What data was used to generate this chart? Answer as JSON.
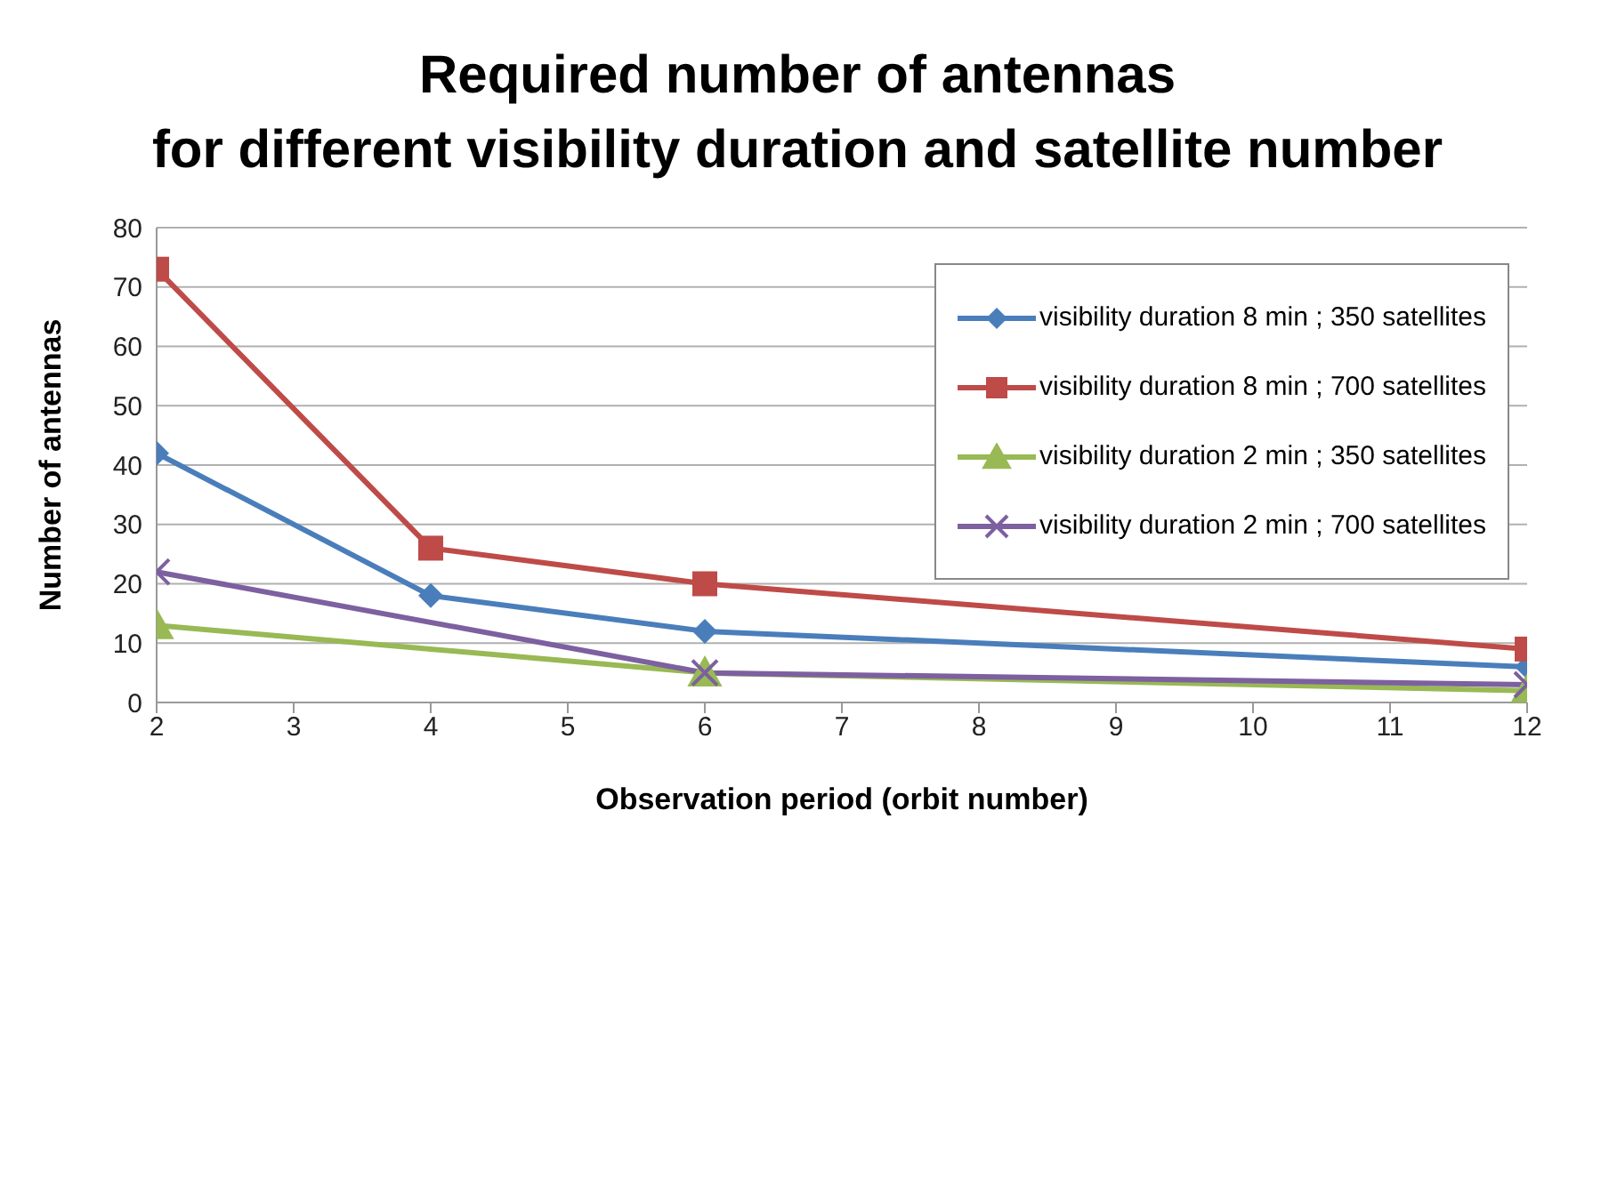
{
  "chart_data": {
    "type": "line",
    "title": "Required number of antennas\nfor different visibility duration and satellite number",
    "xlabel": "Observation period (orbit number)",
    "ylabel": "Number of antennas",
    "xlim": [
      2,
      12
    ],
    "xticks": [
      2,
      3,
      4,
      5,
      6,
      7,
      8,
      9,
      10,
      11,
      12
    ],
    "ylim": [
      0,
      80
    ],
    "yticks": [
      0,
      10,
      20,
      30,
      40,
      50,
      60,
      70,
      80
    ],
    "grid": "y",
    "legend": "top right",
    "line_style": "solid",
    "series": [
      {
        "name": "visibility duration 8 min ; 350 satellites",
        "color": "#4a7ebb",
        "marker": "diamond",
        "x": [
          2,
          4,
          6,
          12
        ],
        "values": [
          42,
          18,
          12,
          6
        ]
      },
      {
        "name": "visibility duration 8 min ; 700 satellites",
        "color": "#be4b48",
        "marker": "square",
        "x": [
          2,
          4,
          6,
          12
        ],
        "values": [
          73,
          26,
          20,
          9
        ]
      },
      {
        "name": "visibility duration 2 min ; 350 satellites",
        "color": "#98b954",
        "marker": "triangle",
        "x": [
          2,
          6,
          12
        ],
        "values": [
          13,
          5,
          2
        ]
      },
      {
        "name": "visibility duration 2 min ; 700 satellites",
        "color": "#7d60a0",
        "marker": "cross",
        "x": [
          2,
          6,
          12
        ],
        "values": [
          22,
          5,
          3
        ]
      }
    ]
  }
}
